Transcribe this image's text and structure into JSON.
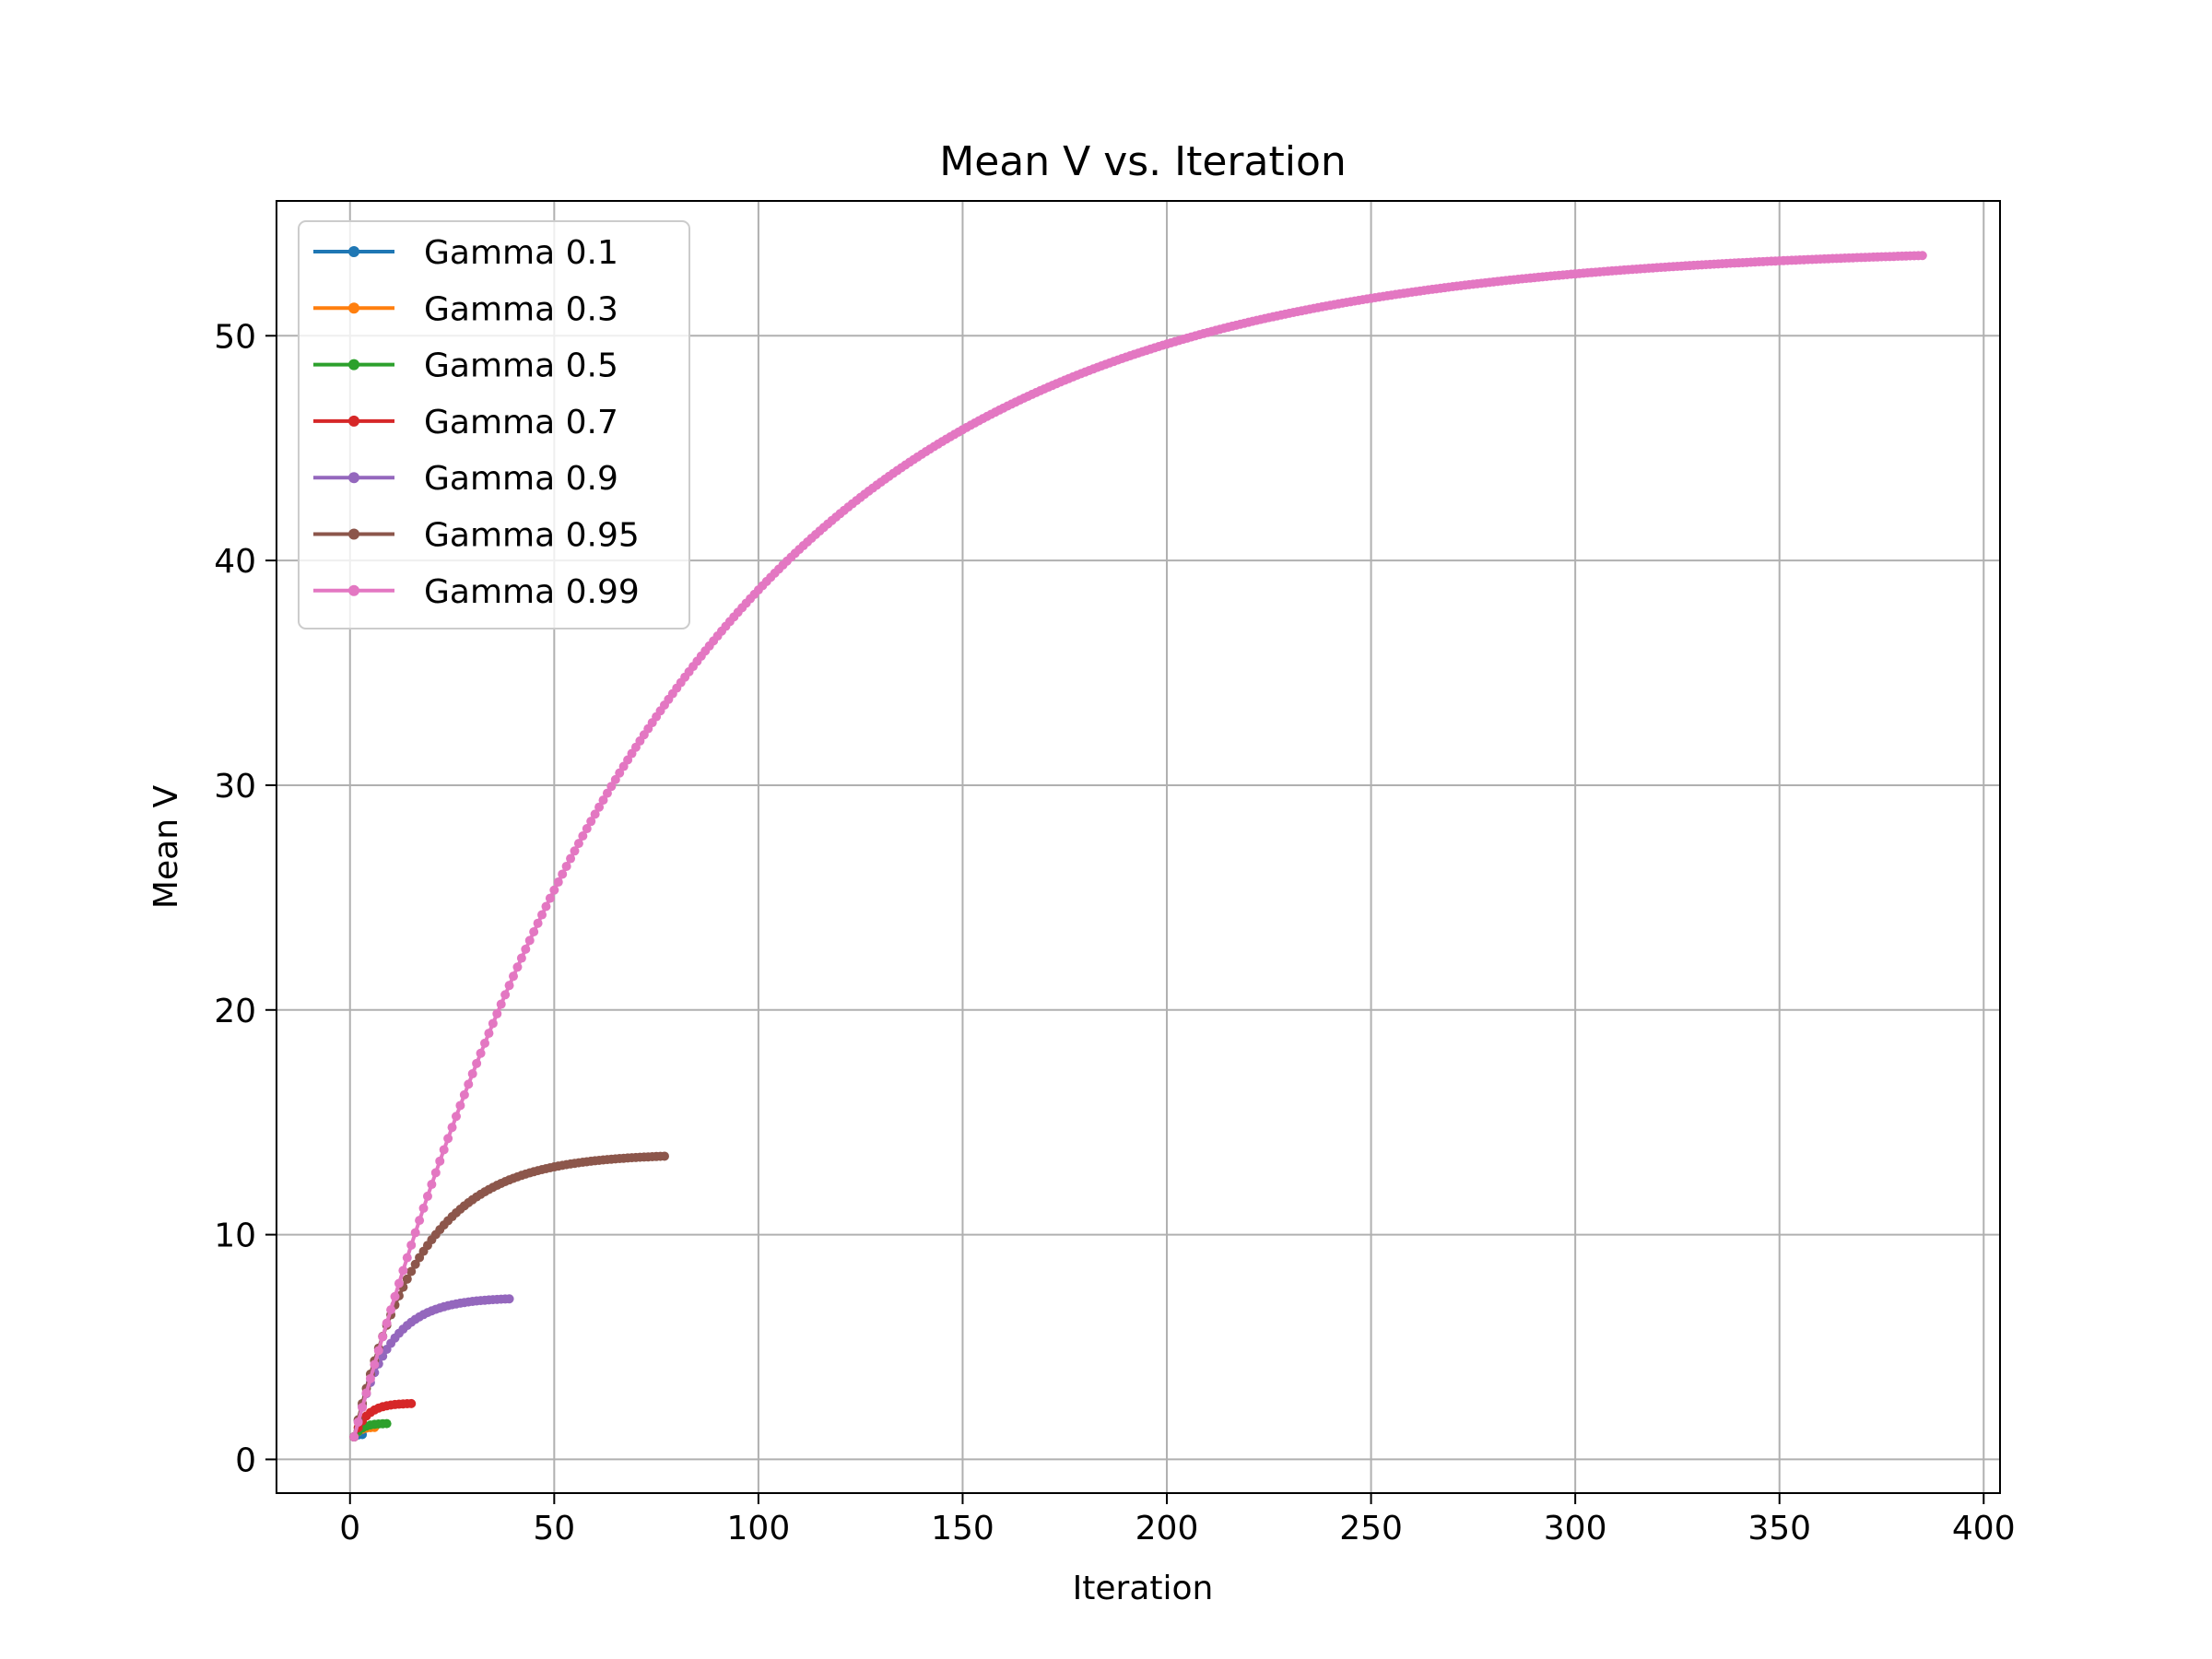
{
  "chart_data": {
    "type": "line",
    "title": "Mean V vs. Iteration",
    "xlabel": "Iteration",
    "ylabel": "Mean V",
    "xlim": [
      -18,
      404
    ],
    "ylim": [
      -1.5,
      56
    ],
    "xticks": [
      0,
      50,
      100,
      150,
      200,
      250,
      300,
      350,
      400
    ],
    "yticks": [
      0,
      10,
      20,
      30,
      40,
      50
    ],
    "grid": true,
    "legend_position": "top-left",
    "series": [
      {
        "name": "Gamma 0.1",
        "color": "#1f77b4",
        "n_points": 3,
        "start": 1.0,
        "limit": 1.11
      },
      {
        "name": "Gamma 0.3",
        "color": "#ff7f0e",
        "n_points": 6,
        "start": 1.0,
        "limit": 1.43
      },
      {
        "name": "Gamma 0.5",
        "color": "#2ca02c",
        "n_points": 9,
        "start": 1.0,
        "limit": 1.6
      },
      {
        "name": "Gamma 0.7",
        "color": "#d62728",
        "n_points": 15,
        "start": 1.0,
        "limit": 2.5
      },
      {
        "name": "Gamma 0.9",
        "color": "#9467bd",
        "n_points": 39,
        "start": 1.0,
        "limit": 7.2
      },
      {
        "name": "Gamma 0.95",
        "color": "#8c564b",
        "n_points": 77,
        "start": 1.0,
        "limit": 13.6
      },
      {
        "name": "Gamma 0.99",
        "color": "#e377c2",
        "n_points": 385,
        "start": 1.0,
        "limit": 54.0
      }
    ]
  }
}
